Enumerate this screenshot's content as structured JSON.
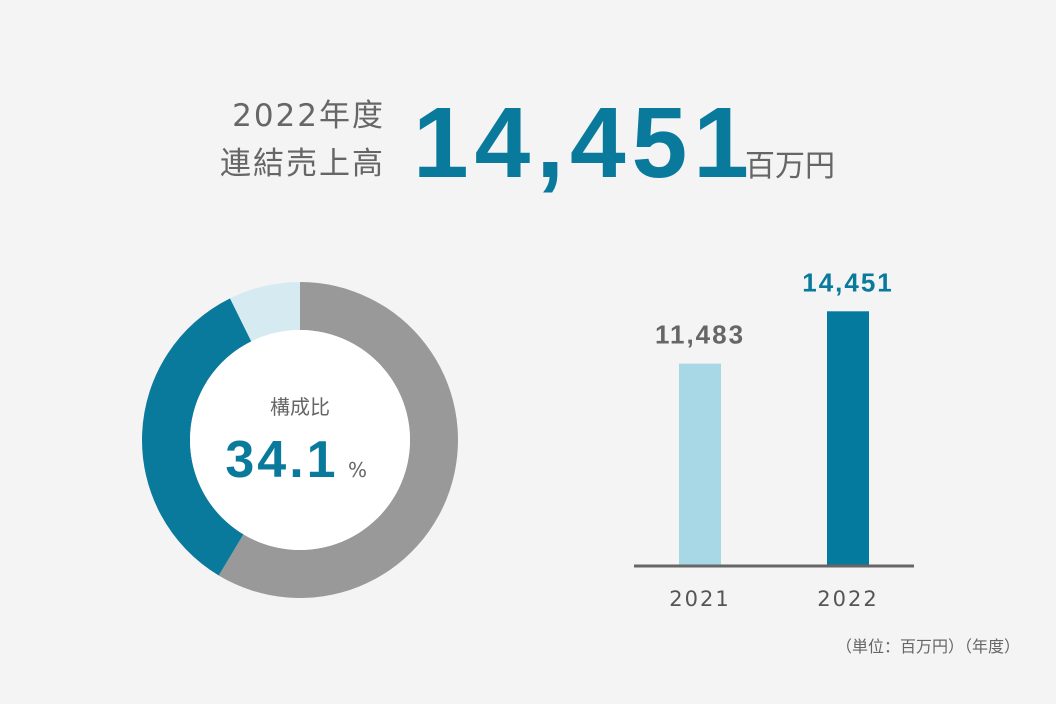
{
  "header": {
    "year_label": "2022年度",
    "metric_label": "連結売上高",
    "value": "14,451",
    "unit": "百万円"
  },
  "chart_data": [
    {
      "type": "pie",
      "center_label": "構成比",
      "unit": "%",
      "values": [
        58.6,
        34.1,
        7.3
      ],
      "colors": [
        "#999999",
        "#0a7a9c",
        "#d6ebf1"
      ],
      "highlight_index": 1
    },
    {
      "type": "bar",
      "categories": [
        "2021",
        "2022"
      ],
      "values": [
        11483,
        14451
      ],
      "value_labels": [
        "11,483",
        "14,451"
      ],
      "colors": [
        "#a8d8e6",
        "#037a9e"
      ],
      "label_colors": [
        "#666666",
        "#0a7a9c"
      ],
      "ylim": [
        0,
        16000
      ]
    }
  ],
  "footnote": "（単位：百万円）（年度）"
}
